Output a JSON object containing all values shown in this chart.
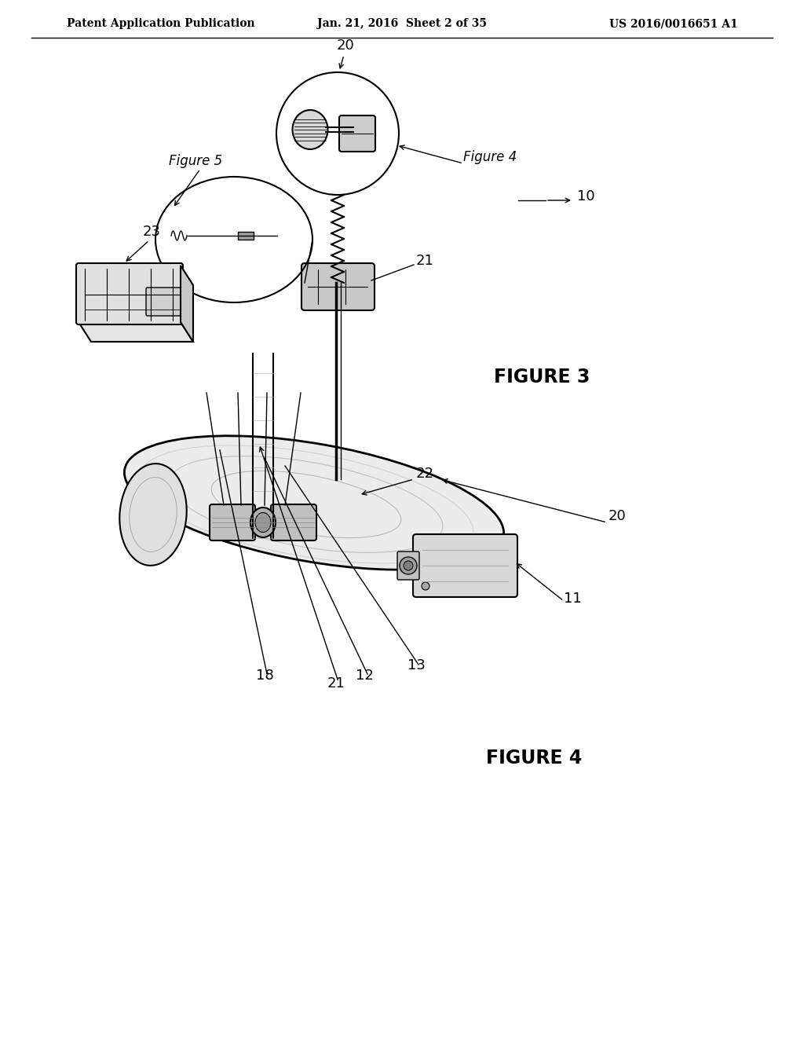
{
  "bg_color": "#ffffff",
  "text_color": "#000000",
  "line_color": "#000000",
  "header_left": "Patent Application Publication",
  "header_mid": "Jan. 21, 2016  Sheet 2 of 35",
  "header_right": "US 2016/0016651 A1",
  "fig3_label": "FIGURE 3",
  "fig4_label": "FIGURE 4"
}
